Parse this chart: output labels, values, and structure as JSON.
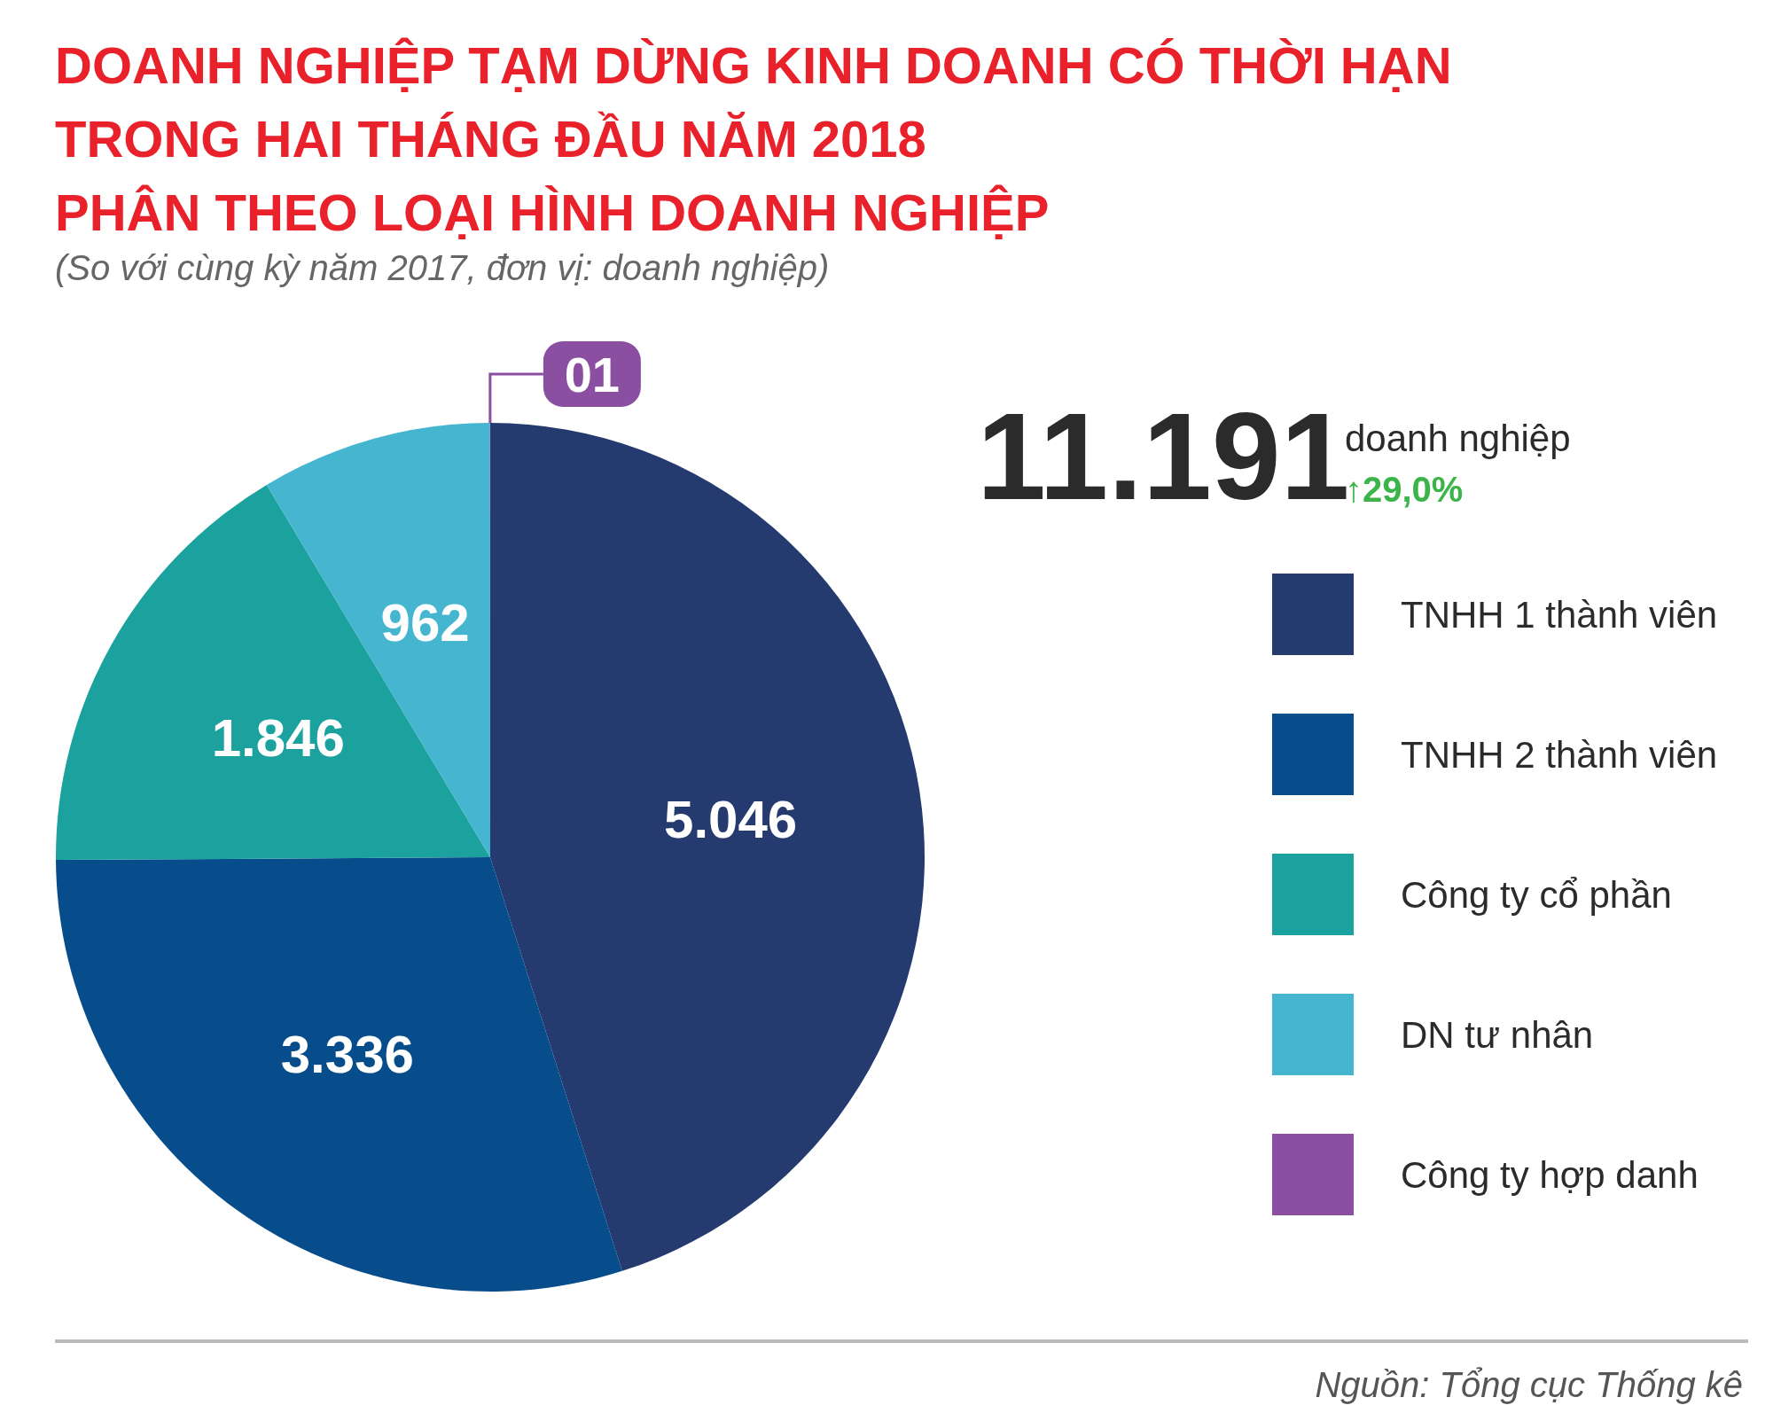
{
  "chart_data": {
    "type": "pie",
    "title": "DOANH NGHIỆP TẠM DỪNG KINH DOANH CÓ THỜI HẠN\nTRONG HAI THÁNG ĐẦU NĂM 2018\nPHÂN THEO LOẠI HÌNH DOANH NGHIỆP",
    "subtitle": "(So với cùng kỳ năm 2017, đơn vị: doanh nghiệp)",
    "categories": [
      "TNHH 1 thành viên",
      "TNHH 2 thành viên",
      "Công ty cổ phần",
      "DN tư nhân",
      "Công ty hợp danh"
    ],
    "values": [
      5046,
      3336,
      1846,
      962,
      1
    ],
    "colors": [
      "#253a6e",
      "#074d8c",
      "#1ba29e",
      "#46b5cf",
      "#8a4fa0"
    ],
    "value_labels": [
      "5.046",
      "3.336",
      "1.846",
      "962",
      "01"
    ],
    "legend": "right",
    "annotations": [
      "11.191",
      "doanh nghiệp",
      "↑29,0%",
      "Nguồn: Tổng cục Thống kê"
    ]
  }
}
